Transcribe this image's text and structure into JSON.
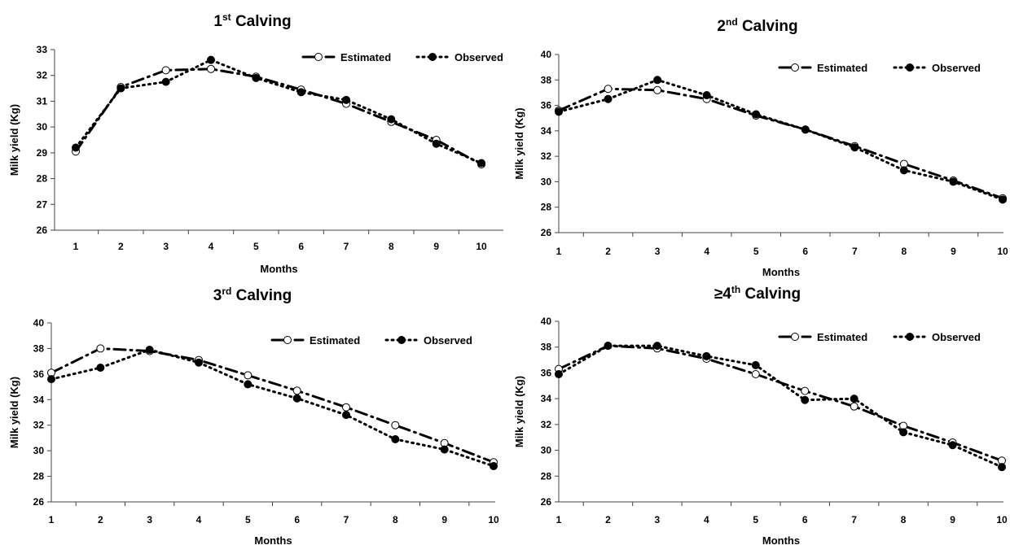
{
  "chart_data": [
    {
      "type": "line",
      "title_main": "1",
      "title_sup": "st",
      "title_rest": " Calving",
      "xlabel": "Months",
      "ylabel": "Milk yield (Kg)",
      "x": [
        1,
        2,
        3,
        4,
        5,
        6,
        7,
        8,
        9,
        10
      ],
      "ylim": [
        26,
        33
      ],
      "yticks": [
        26,
        27,
        28,
        29,
        30,
        31,
        32,
        33
      ],
      "series": [
        {
          "name": "Estimated",
          "values": [
            29.05,
            31.55,
            32.2,
            32.25,
            31.95,
            31.45,
            30.9,
            30.2,
            29.5,
            28.55
          ]
        },
        {
          "name": "Observed",
          "values": [
            29.2,
            31.5,
            31.75,
            32.6,
            31.9,
            31.35,
            31.05,
            30.3,
            29.35,
            28.6
          ]
        }
      ],
      "legend": "top-right",
      "grid": false
    },
    {
      "type": "line",
      "title_main": "2",
      "title_sup": "nd",
      "title_rest": " Calving",
      "xlabel": "Months",
      "ylabel": "Milk yield (Kg)",
      "x": [
        1,
        2,
        3,
        4,
        5,
        6,
        7,
        8,
        9,
        10
      ],
      "ylim": [
        26,
        40
      ],
      "yticks": [
        26,
        28,
        30,
        32,
        34,
        36,
        38,
        40
      ],
      "series": [
        {
          "name": "Estimated",
          "values": [
            35.6,
            37.3,
            37.2,
            36.5,
            35.2,
            34.1,
            32.8,
            31.4,
            30.1,
            28.7
          ]
        },
        {
          "name": "Observed",
          "values": [
            35.5,
            36.5,
            38.0,
            36.8,
            35.3,
            34.1,
            32.7,
            30.9,
            30.0,
            28.6
          ]
        }
      ],
      "legend": "top-right",
      "grid": false
    },
    {
      "type": "line",
      "title_main": "3",
      "title_sup": "rd",
      "title_rest": " Calving",
      "xlabel": "Months",
      "ylabel": "Milk yield (Kg)",
      "x": [
        1,
        2,
        3,
        4,
        5,
        6,
        7,
        8,
        9,
        10
      ],
      "ylim": [
        26,
        40
      ],
      "yticks": [
        26,
        28,
        30,
        32,
        34,
        36,
        38,
        40
      ],
      "series": [
        {
          "name": "Estimated",
          "values": [
            36.1,
            38.0,
            37.8,
            37.1,
            35.9,
            34.7,
            33.4,
            32.0,
            30.6,
            29.1
          ]
        },
        {
          "name": "Observed",
          "values": [
            35.6,
            36.5,
            37.9,
            36.9,
            35.2,
            34.1,
            32.8,
            30.9,
            30.1,
            28.8
          ]
        }
      ],
      "legend": "top-right",
      "grid": false
    },
    {
      "type": "line",
      "title_main": "≥4",
      "title_sup": "th",
      "title_rest": " Calving",
      "xlabel": "Months",
      "ylabel": "Milk yield (Kg)",
      "x": [
        1,
        2,
        3,
        4,
        5,
        6,
        7,
        8,
        9,
        10
      ],
      "ylim": [
        26,
        40
      ],
      "yticks": [
        26,
        28,
        30,
        32,
        34,
        36,
        38,
        40
      ],
      "series": [
        {
          "name": "Estimated",
          "values": [
            36.3,
            38.1,
            37.9,
            37.1,
            35.9,
            34.6,
            33.4,
            31.9,
            30.6,
            29.2
          ]
        },
        {
          "name": "Observed",
          "values": [
            35.9,
            38.1,
            38.1,
            37.3,
            36.6,
            33.9,
            34.0,
            31.4,
            30.4,
            28.7
          ]
        }
      ],
      "legend": "top-right",
      "grid": false
    }
  ]
}
